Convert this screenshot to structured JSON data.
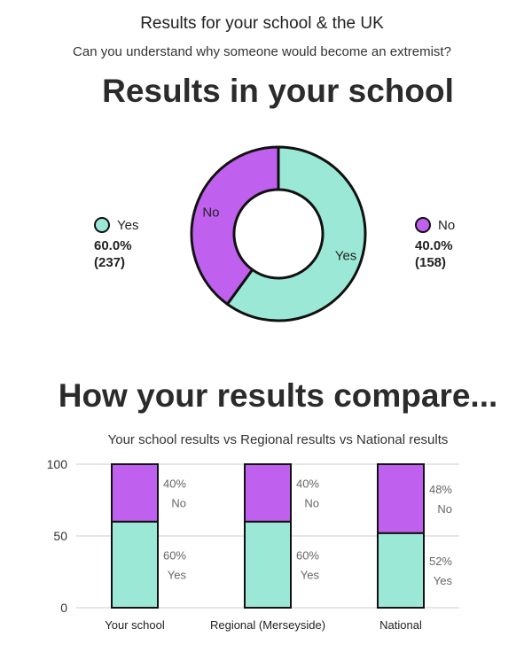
{
  "header": {
    "title": "Results for your school & the UK",
    "question": "Can you understand why someone would become an extremist?"
  },
  "colors": {
    "yes": "#9ce8d6",
    "no": "#bf60ee",
    "outline": "#111111",
    "grid": "#dddddd",
    "text": "#222222"
  },
  "school_section": {
    "heading": "Results in your school",
    "legend": [
      {
        "label": "Yes",
        "percent": "60.0%",
        "count": "(237)"
      },
      {
        "label": "No",
        "percent": "40.0%",
        "count": "(158)"
      }
    ]
  },
  "compare_section": {
    "heading": "How your results compare...",
    "subtitle": "Your school results vs Regional results vs National results"
  },
  "chart_data": [
    {
      "type": "pie",
      "variant": "donut",
      "categories": [
        "Yes",
        "No"
      ],
      "values": [
        237,
        158
      ],
      "slice_labels": [
        "Yes",
        "No"
      ]
    },
    {
      "type": "bar",
      "stacked": true,
      "categories": [
        "Your school",
        "Regional (Merseyside)",
        "National"
      ],
      "series": [
        {
          "name": "Yes",
          "values": [
            60,
            60,
            52
          ],
          "labels": [
            "60%",
            "60%",
            "52%"
          ]
        },
        {
          "name": "No",
          "values": [
            40,
            40,
            48
          ],
          "labels": [
            "40%",
            "40%",
            "48%"
          ]
        }
      ],
      "ylim": [
        0,
        100
      ],
      "yticks": [
        "0",
        "50",
        "100"
      ],
      "grid": true
    }
  ]
}
